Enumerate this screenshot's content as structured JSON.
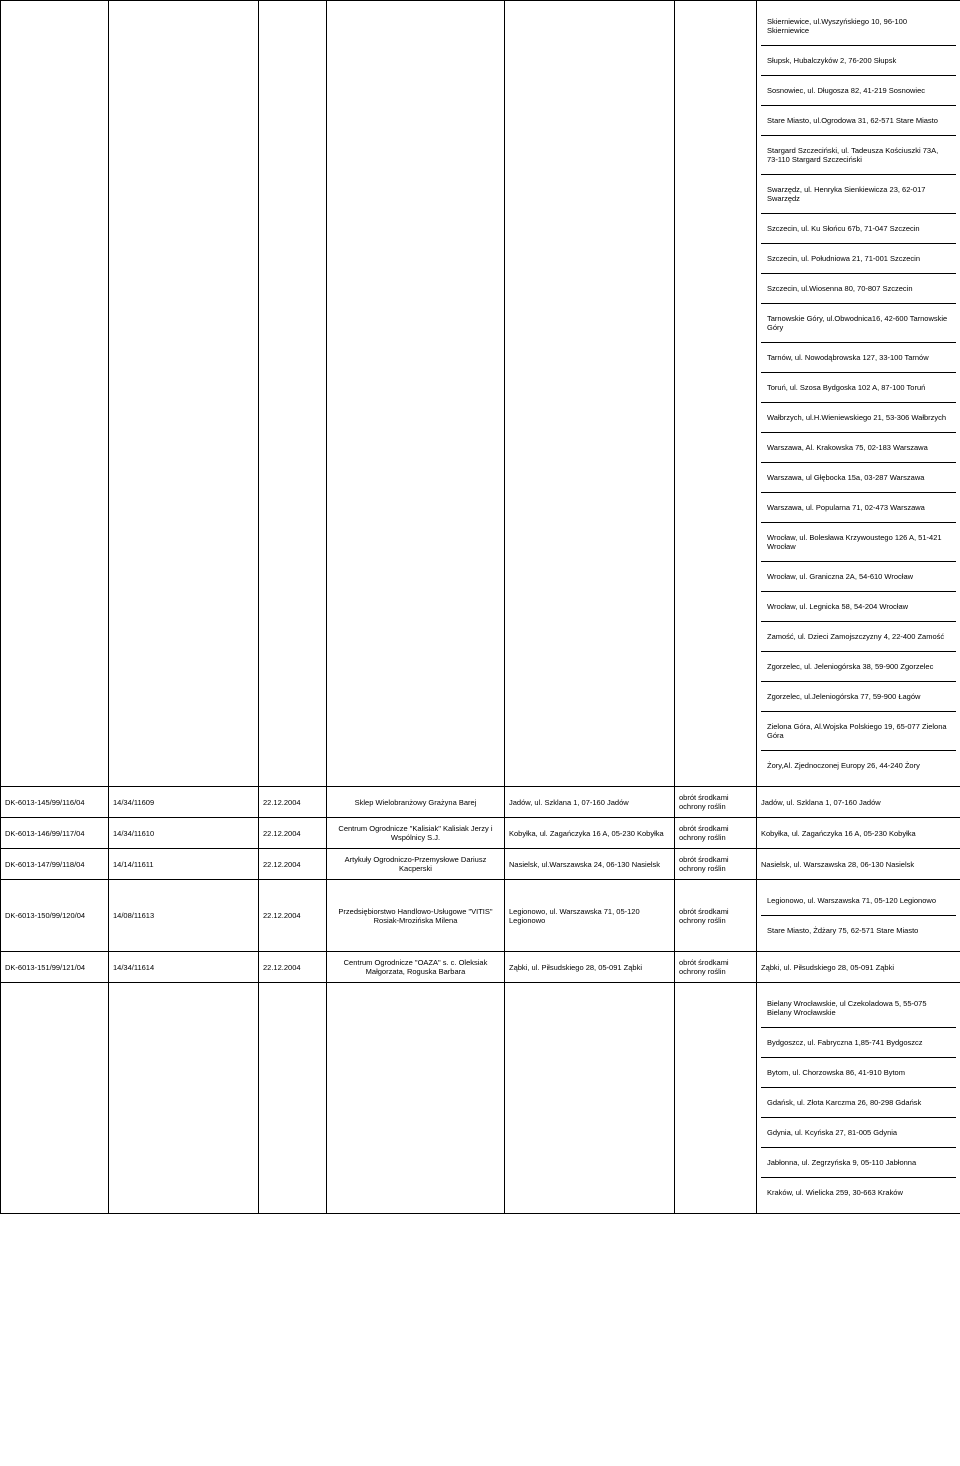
{
  "top_row_addresses": [
    "Skierniewice, ul.Wyszyńskiego 10, 96-100 Skierniewice",
    "Słupsk, Hubalczyków 2, 76-200 Słupsk",
    "Sosnowiec, ul. Długosza 82, 41-219 Sosnowiec",
    "Stare Miasto, ul.Ogrodowa 31, 62-571 Stare Miasto",
    "Stargard Szczeciński, ul. Tadeusza Kościuszki 73A, 73-110 Stargard Szczeciński",
    "Swarzędz, ul. Henryka Sienkiewicza 23, 62-017 Swarzędz",
    "Szczecin, ul. Ku Słońcu 67b, 71-047 Szczecin",
    "Szczecin, ul. Południowa 21, 71-001 Szczecin",
    "Szczecin, ul.Wiosenna 80, 70-807 Szczecin",
    "Tarnowskie Góry, ul.Obwodnica16, 42-600 Tarnowskie Góry",
    "Tarnów, ul. Nowodąbrowska 127, 33-100 Tarnów",
    "Toruń, ul. Szosa Bydgoska 102 A, 87-100 Toruń",
    "Wałbrzych, ul.H.Wieniewskiego 21, 53-306 Wałbrzych",
    "Warszawa, Al. Krakowska 75, 02-183 Warszawa",
    "Warszawa, ul Głębocka 15a, 03-287 Warszawa",
    "Warszawa, ul. Popularna 71, 02-473 Warszawa",
    "Wrocław, ul. Bolesława Krzywoustego 126 A, 51-421 Wrocław",
    "Wrocław, ul. Graniczna 2A, 54-610 Wrocław",
    "Wrocław, ul. Legnicka 58, 54-204 Wrocław",
    "Zamość, ul. Dzieci Zamojszczyzny 4, 22-400 Zamość",
    "Zgorzelec, ul. Jeleniogórska 38, 59-900 Zgorzelec",
    "Zgorzelec, ul.Jeleniogórska 77, 59-900 Łagów",
    "Zielona Góra, Al.Wojska Polskiego 19, 65-077 Zielona Góra",
    "Żory,Al. Zjednoczonej Europy 26, 44-240 Żory"
  ],
  "rows": [
    {
      "id": "DK-6013-145/99/116/04",
      "ref": "14/34/11609",
      "date": "22.12.2004",
      "name": "Sklep Wielobranżowy Grażyna Barej",
      "addr": "Jadów, ul. Szklana 1, 07-160 Jadów",
      "type": "obrót środkami ochrony roślin",
      "loc": [
        "Jadów, ul. Szklana 1, 07-160 Jadów"
      ]
    },
    {
      "id": "DK-6013-146/99/117/04",
      "ref": "14/34/11610",
      "date": "22.12.2004",
      "name": "Centrum Ogrodnicze \"Kalisiak\" Kalisiak Jerzy i Wspólnicy S.J.",
      "addr": "Kobyłka, ul. Zagańczyka 16 A, 05-230 Kobyłka",
      "type": "obrót środkami ochrony roślin",
      "loc": [
        "Kobyłka, ul. Zagańczyka 16 A, 05-230 Kobyłka"
      ]
    },
    {
      "id": "DK-6013-147/99/118/04",
      "ref": "14/14/11611",
      "date": "22.12.2004",
      "name": "Artykuły Ogrodniczo-Przemysłowe Dariusz Kacperski",
      "addr": "Nasielsk, ul.Warszawska 24, 06-130 Nasielsk",
      "type": "obrót środkami ochrony roślin",
      "loc": [
        "Nasielsk, ul. Warszawska 28, 06-130 Nasielsk"
      ]
    },
    {
      "id": "DK-6013-150/99/120/04",
      "ref": "14/08/11613",
      "date": "22.12.2004",
      "name": "Przedsiębiorstwo Handlowo-Usługowe \"VITIS\" Rosiak-Mrozińska Milena",
      "addr": "Legionowo, ul. Warszawska 71, 05-120 Legionowo",
      "type": "obrót środkami ochrony roślin",
      "loc": [
        "Legionowo, ul. Warszawska 71, 05-120 Legionowo",
        "Stare Miasto, Żdżary 75, 62-571 Stare Miasto"
      ]
    },
    {
      "id": "DK-6013-151/99/121/04",
      "ref": "14/34/11614",
      "date": "22.12.2004",
      "name": "Centrum Ogrodnicze \"OAZA\" s. c. Oleksiak Małgorzata, Roguska Barbara",
      "addr": "Ząbki, ul. Piłsudskiego 28, 05-091 Ząbki",
      "type": "obrót środkami ochrony roślin",
      "loc": [
        "Ząbki, ul. Piłsudskiego 28, 05-091 Ząbki"
      ]
    }
  ],
  "bottom_row_addresses": [
    "Bielany Wrocławskie, ul Czekoladowa 5, 55-075 Bielany Wrocławskie",
    "Bydgoszcz, ul. Fabryczna 1,85-741 Bydgoszcz",
    "Bytom, ul. Chorzowska 86, 41-910 Bytom",
    "Gdańsk, ul. Złota Karczma 26, 80-298 Gdańsk",
    "Gdynia, ul. Kcyńska 27, 81-005 Gdynia",
    "Jabłonna, ul. Zegrzyńska 9, 05-110 Jabłonna",
    "Kraków, ul. Wielicka 259, 30-663 Kraków"
  ]
}
